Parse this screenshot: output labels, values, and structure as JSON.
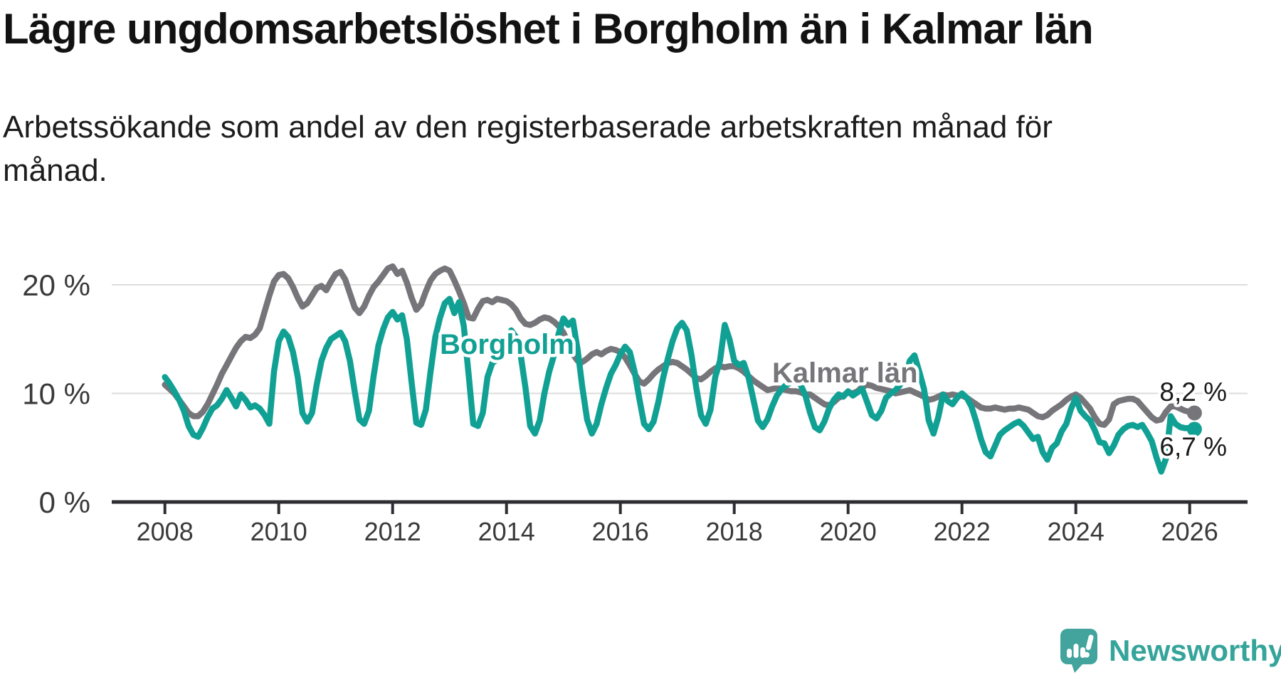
{
  "title": "Lägre ungdomsarbetslöshet i Borgholm än i Kalmar län",
  "subtitle_lines": [
    "Arbetssökande som andel av den registerbaserade arbetskraften månad för",
    "månad."
  ],
  "branding": {
    "logo_text": "Newsworthy",
    "logo_icon": "speech-bubble-barchart-exclamation",
    "logo_color": "#42a49d",
    "logo_text_color": "#35a49a"
  },
  "colors": {
    "borgholm": "#11a094",
    "kalmar": "#75757a",
    "grid": "#dcdcdc",
    "axis": "#2e2e32",
    "tick_text": "#3a3a3a",
    "value_label_text": "#1a1a1a"
  },
  "chart_data": {
    "type": "line",
    "title": "Lägre ungdomsarbetslöshet i Borgholm än i Kalmar län",
    "subtitle": "Arbetssökande som andel av den registerbaserade arbetskraften månad för månad.",
    "unit": "percent",
    "frequency": "monthly",
    "start": "2008-01",
    "end": "2026-02",
    "xlabel": "",
    "ylabel": "",
    "ylim": [
      0,
      23
    ],
    "grid": "horizontal-only",
    "legend_position": "inline-labels",
    "y_ticks": [
      0,
      10,
      20
    ],
    "y_tick_labels": [
      "0 %",
      "10 %",
      "20 %"
    ],
    "x_tick_labels": [
      "2008",
      "2010",
      "2012",
      "2014",
      "2016",
      "2018",
      "2020",
      "2022",
      "2024",
      "2026"
    ],
    "series": [
      {
        "name": "Borgholm",
        "color": "#11a094",
        "end_label": "6,7 %",
        "end_value": 6.7,
        "values": [
          11.5,
          10.9,
          10.2,
          9.4,
          8.4,
          7.0,
          6.2,
          6.0,
          6.8,
          7.8,
          8.6,
          8.9,
          9.5,
          10.3,
          9.6,
          8.8,
          9.9,
          9.4,
          8.7,
          8.9,
          8.6,
          8.0,
          7.2,
          12.0,
          14.8,
          15.7,
          15.2,
          13.8,
          11.5,
          8.2,
          7.4,
          8.2,
          10.8,
          13.0,
          14.2,
          15.0,
          15.3,
          15.6,
          14.8,
          13.0,
          10.2,
          7.6,
          7.2,
          8.4,
          11.6,
          14.4,
          15.9,
          17.0,
          17.5,
          16.8,
          17.2,
          15.0,
          11.0,
          7.3,
          7.1,
          8.5,
          12.0,
          15.2,
          17.0,
          18.3,
          18.7,
          17.4,
          18.4,
          16.2,
          11.8,
          7.2,
          7.0,
          8.2,
          11.5,
          12.8,
          13.1,
          13.3,
          14.5,
          15.8,
          15.2,
          13.5,
          10.5,
          7.0,
          6.3,
          7.5,
          10.0,
          12.0,
          13.5,
          15.5,
          16.9,
          16.3,
          16.7,
          14.0,
          10.5,
          7.6,
          6.3,
          7.2,
          9.0,
          10.5,
          11.8,
          12.6,
          13.6,
          14.3,
          13.8,
          12.0,
          9.5,
          7.2,
          6.7,
          7.4,
          9.2,
          11.4,
          13.2,
          14.8,
          16.0,
          16.5,
          15.8,
          13.5,
          10.5,
          8.0,
          7.2,
          8.5,
          11.5,
          13.0,
          16.3,
          15.0,
          13.0,
          12.6,
          12.8,
          11.5,
          9.5,
          7.5,
          6.9,
          7.6,
          8.8,
          9.8,
          10.4,
          10.8,
          11.0,
          11.3,
          10.8,
          9.8,
          8.2,
          6.9,
          6.6,
          7.4,
          8.6,
          9.4,
          9.9,
          9.7,
          10.2,
          9.8,
          10.1,
          10.4,
          9.2,
          8.0,
          7.7,
          8.4,
          9.6,
          10.0,
          10.3,
          10.8,
          11.5,
          13.0,
          13.5,
          12.0,
          10.4,
          7.5,
          6.3,
          7.8,
          9.9,
          9.3,
          9.0,
          9.6,
          10.0,
          9.6,
          8.8,
          7.4,
          5.8,
          4.6,
          4.2,
          5.2,
          6.2,
          6.6,
          6.9,
          7.2,
          7.4,
          7.0,
          6.4,
          5.8,
          6.0,
          4.6,
          3.9,
          5.0,
          5.4,
          6.5,
          7.2,
          8.6,
          9.6,
          8.4,
          7.9,
          7.5,
          6.6,
          5.5,
          5.4,
          4.5,
          5.2,
          6.2,
          6.7,
          7.0,
          7.1,
          6.9,
          7.1,
          6.4,
          5.6,
          4.1,
          2.8,
          4.0,
          7.9,
          7.2,
          6.9,
          6.8,
          6.8,
          6.7
        ]
      },
      {
        "name": "Kalmar län",
        "color": "#75757a",
        "end_label": "8,2 %",
        "end_value": 8.2,
        "values": [
          10.8,
          10.4,
          10.0,
          9.4,
          8.8,
          8.2,
          7.9,
          7.9,
          8.3,
          9.0,
          9.9,
          10.8,
          11.8,
          12.6,
          13.4,
          14.2,
          14.8,
          15.2,
          15.1,
          15.4,
          16.0,
          17.5,
          19.0,
          20.3,
          20.9,
          21.0,
          20.6,
          19.8,
          18.8,
          18.0,
          18.3,
          19.0,
          19.7,
          19.9,
          19.5,
          20.3,
          21.0,
          21.2,
          20.5,
          19.2,
          17.9,
          17.4,
          18.0,
          19.0,
          19.8,
          20.3,
          20.9,
          21.5,
          21.7,
          21.0,
          21.3,
          20.2,
          18.8,
          17.7,
          18.2,
          19.4,
          20.4,
          21.0,
          21.3,
          21.5,
          21.3,
          20.4,
          19.4,
          18.3,
          17.0,
          16.9,
          17.8,
          18.5,
          18.6,
          18.4,
          18.7,
          18.6,
          18.5,
          18.2,
          17.7,
          16.9,
          16.4,
          16.3,
          16.5,
          16.8,
          17.0,
          16.9,
          16.6,
          16.2,
          15.6,
          14.6,
          13.6,
          13.0,
          12.9,
          13.2,
          13.6,
          13.8,
          13.6,
          13.9,
          14.1,
          14.0,
          13.8,
          13.3,
          12.6,
          11.8,
          11.1,
          10.9,
          11.3,
          11.8,
          12.2,
          12.5,
          12.8,
          12.9,
          12.8,
          12.5,
          12.2,
          11.8,
          11.4,
          11.3,
          11.6,
          12.0,
          12.3,
          12.5,
          12.4,
          12.5,
          12.5,
          12.3,
          12.0,
          11.6,
          11.2,
          10.9,
          10.6,
          10.3,
          10.4,
          10.5,
          10.4,
          10.3,
          10.2,
          10.2,
          10.1,
          9.9,
          9.9,
          9.6,
          9.3,
          9.0,
          8.9,
          9.2,
          9.6,
          9.8,
          10.1,
          10.0,
          10.2,
          10.6,
          10.8,
          10.7,
          10.5,
          10.4,
          10.3,
          10.2,
          10.0,
          10.1,
          10.2,
          10.3,
          10.1,
          9.9,
          9.7,
          9.4,
          9.5,
          9.7,
          9.9,
          9.8,
          9.9,
          9.8,
          9.8,
          9.6,
          9.3,
          9.0,
          8.7,
          8.6,
          8.6,
          8.7,
          8.6,
          8.5,
          8.6,
          8.6,
          8.7,
          8.6,
          8.5,
          8.2,
          7.9,
          7.8,
          8.0,
          8.4,
          8.7,
          9.0,
          9.4,
          9.7,
          9.9,
          9.6,
          9.1,
          8.6,
          7.8,
          7.2,
          7.1,
          7.6,
          9.0,
          9.3,
          9.4,
          9.5,
          9.5,
          9.3,
          8.8,
          8.3,
          7.8,
          7.5,
          7.6,
          8.3,
          8.8,
          8.8,
          8.6,
          8.4,
          8.3,
          8.2
        ]
      }
    ]
  }
}
